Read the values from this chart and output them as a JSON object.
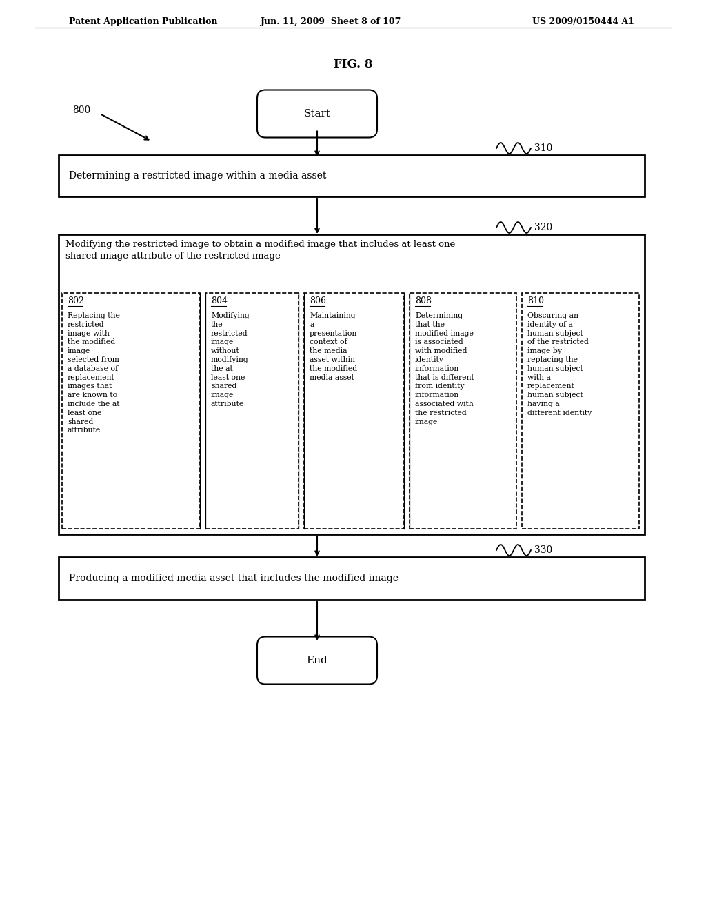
{
  "header_left": "Patent Application Publication",
  "header_mid": "Jun. 11, 2009  Sheet 8 of 107",
  "header_right": "US 2009/0150444 A1",
  "fig_label": "FIG. 8",
  "diagram_label": "800",
  "label_310": "310",
  "label_320": "320",
  "label_330": "330",
  "start_text": "Start",
  "end_text": "End",
  "box310_text": "Determining a restricted image within a media asset",
  "box320_header": "Modifying the restricted image to obtain a modified image that includes at least one\nshared image attribute of the restricted image",
  "sub802_label": "802",
  "sub802_text": "Replacing the\nrestricted\nimage with\nthe modified\nimage\nselected from\na database of\nreplacement\nimages that\nare known to\ninclude the at\nleast one\nshared\nattribute",
  "sub804_label": "804",
  "sub804_text": "Modifying\nthe\nrestricted\nimage\nwithout\nmodifying\nthe at\nleast one\nshared\nimage\nattribute",
  "sub806_label": "806",
  "sub806_text": "Maintaining\na\npresentation\ncontext of\nthe media\nasset within\nthe modified\nmedia asset",
  "sub808_label": "808",
  "sub808_text": "Determining\nthat the\nmodified image\nis associated\nwith modified\nidentity\ninformation\nthat is different\nfrom identity\ninformation\nassociated with\nthe restricted\nimage",
  "sub810_label": "810",
  "sub810_text": "Obscuring an\nidentity of a\nhuman subject\nof the restricted\nimage by\nreplacing the\nhuman subject\nwith a\nreplacement\nhuman subject\nhaving a\ndifferent identity",
  "box330_text": "Producing a modified media asset that includes the modified image",
  "bg_color": "#ffffff",
  "text_color": "#000000"
}
